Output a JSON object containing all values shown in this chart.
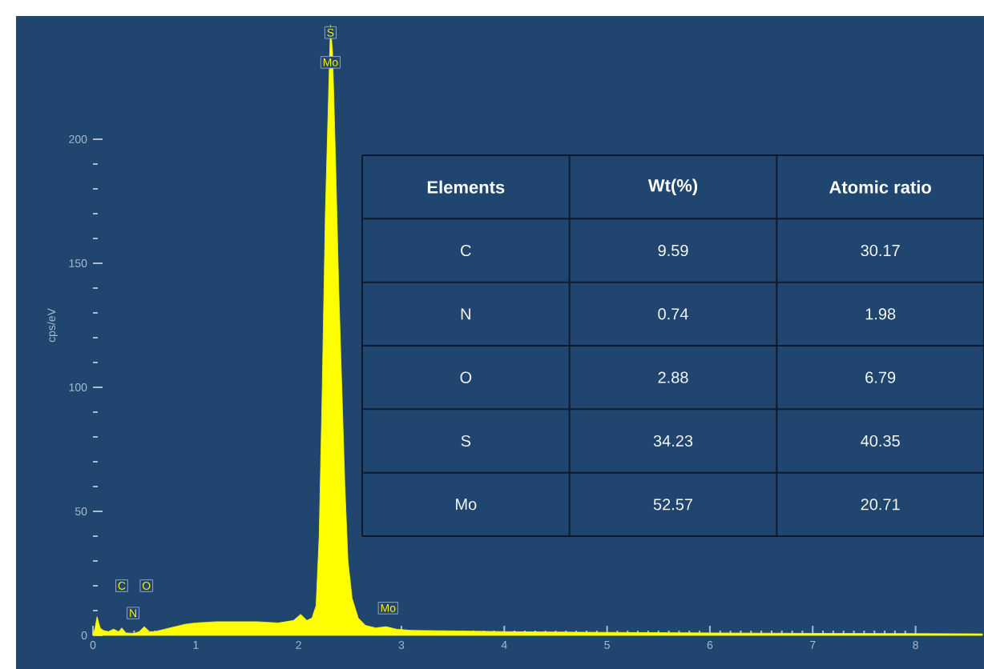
{
  "chart_data": [
    {
      "type": "area",
      "ylabel": "cps/eV",
      "xlim": [
        0,
        8.65
      ],
      "ylim": [
        0,
        250
      ],
      "xticks": [
        0,
        1,
        2,
        3,
        4,
        5,
        6,
        7,
        8
      ],
      "yticks": [
        0,
        50,
        100,
        150,
        200
      ],
      "series": [
        {
          "color": "#ffff00",
          "x": [
            0,
            0.02,
            0.04,
            0.07,
            0.1,
            0.15,
            0.2,
            0.25,
            0.28,
            0.32,
            0.4,
            0.45,
            0.5,
            0.55,
            0.6,
            0.7,
            0.8,
            0.9,
            1.0,
            1.2,
            1.4,
            1.6,
            1.8,
            1.95,
            2.02,
            2.08,
            2.13,
            2.17,
            2.2,
            2.23,
            2.26,
            2.29,
            2.31,
            2.33,
            2.36,
            2.39,
            2.42,
            2.45,
            2.48,
            2.52,
            2.58,
            2.65,
            2.75,
            2.85,
            2.95,
            3.1,
            3.5,
            4,
            5,
            6,
            7,
            8,
            8.65
          ],
          "values": [
            0,
            3,
            7.5,
            3,
            2,
            1.5,
            2.5,
            1.5,
            3,
            1,
            0.8,
            1.5,
            3.5,
            1.5,
            1.5,
            2.5,
            3.5,
            4.5,
            5,
            5.5,
            5.5,
            5.5,
            5,
            6,
            8.5,
            6,
            7,
            12,
            40,
            100,
            170,
            null,
            246,
            235,
            190,
            140,
            100,
            60,
            30,
            15,
            7,
            4,
            3,
            3.5,
            2.5,
            2,
            1.8,
            1.5,
            1.2,
            1,
            0.8,
            0.7,
            0.6
          ]
        }
      ],
      "annotations": [
        {
          "text": "C",
          "x": 0.28,
          "y": 20
        },
        {
          "text": "N",
          "x": 0.39,
          "y": 9
        },
        {
          "text": "O",
          "x": 0.52,
          "y": 20
        },
        {
          "text": "S",
          "x": 2.31,
          "y": 243
        },
        {
          "text": "Mo",
          "x": 2.31,
          "y": 231
        },
        {
          "text": "Mo",
          "x": 2.87,
          "y": 11
        }
      ]
    },
    {
      "type": "other",
      "xlabel": "Elements",
      "categories": [
        "C",
        "N",
        "O",
        "S",
        "Mo"
      ],
      "data_labels": true,
      "series": [
        {
          "name": "Wt(%)",
          "values": [
            9.59,
            0.74,
            2.88,
            34.23,
            52.57
          ]
        },
        {
          "name": "Atomic ratio",
          "values": [
            30.17,
            1.98,
            6.79,
            40.35,
            20.71
          ]
        }
      ]
    }
  ]
}
